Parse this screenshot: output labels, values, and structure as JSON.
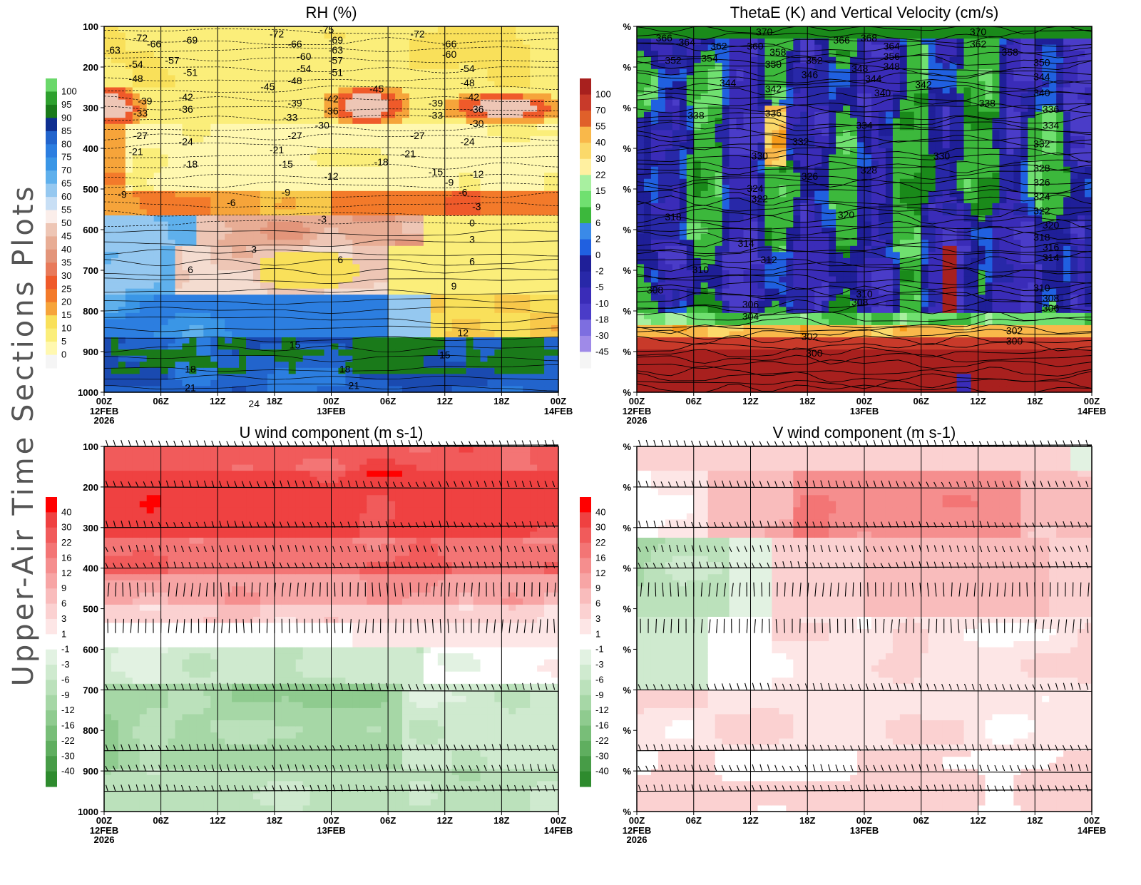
{
  "page": {
    "side_title": "Upper-Air Time Sections Plots"
  },
  "colors": {
    "rh": [
      "#f5f5f5",
      "#fff8b0",
      "#fbee7a",
      "#f9e05a",
      "#f8c84a",
      "#f6a43a",
      "#f37a2a",
      "#ef5a2a",
      "#e87a5a",
      "#e3957a",
      "#e8ad95",
      "#eec6b5",
      "#f4dcd0",
      "#fbeeea",
      "#c8dff5",
      "#95c8f0",
      "#5fb0ec",
      "#3a96e6",
      "#2c7ee0",
      "#2264cc",
      "#1a4ab0",
      "#0f2f90",
      "#1a7a1a",
      "#2ea02e",
      "#6ad86a"
    ],
    "w": [
      "#f5f5f5",
      "#9f8ae8",
      "#7d6ee0",
      "#5f50d4",
      "#4a3cc8",
      "#3a2cb8",
      "#2828a8",
      "#1f1f98",
      "#2060e0",
      "#3a8ae8",
      "#1a8a1a",
      "#3cb83c",
      "#70e070",
      "#a8f0a0",
      "#fff0a0",
      "#fbd96a",
      "#f9b84a",
      "#f59a1a",
      "#e0602a",
      "#c83a2a",
      "#a8201e"
    ],
    "wind": [
      "#2e8b2e",
      "#479c47",
      "#5fae5f",
      "#78be78",
      "#8fcb8f",
      "#a6d7a6",
      "#bbe1bb",
      "#cfeacf",
      "#e2f2e2",
      "#ffffff",
      "#fde6e6",
      "#fbd1d1",
      "#f9bcbc",
      "#f7a5a5",
      "#f58e8e",
      "#f37575",
      "#f15b5b",
      "#ef4141",
      "#ff0000"
    ]
  },
  "chart_data": [
    {
      "id": "rh",
      "type": "heatmap",
      "title": "RH (%)",
      "y_ticks": [
        "100",
        "200",
        "300",
        "400",
        "500",
        "600",
        "700",
        "800",
        "900",
        "1000"
      ],
      "x_ticks": [
        "00Z",
        "06Z",
        "12Z",
        "18Z",
        "00Z",
        "06Z",
        "12Z",
        "18Z",
        "00Z"
      ],
      "date_labels": [
        {
          "tick": 0,
          "lines": [
            "12FEB",
            "2026"
          ]
        },
        {
          "tick": 4,
          "lines": [
            "13FEB"
          ]
        },
        {
          "tick": 8,
          "lines": [
            "14FEB"
          ]
        }
      ],
      "colorbar": [
        "100",
        "95",
        "90",
        "85",
        "80",
        "75",
        "70",
        "65",
        "60",
        "55",
        "50",
        "45",
        "40",
        "35",
        "30",
        "25",
        "20",
        "15",
        "10",
        "5",
        "0"
      ],
      "contour_labels": [
        {
          "t": 0.08,
          "p": 130,
          "v": "-72"
        },
        {
          "t": 0.02,
          "p": 160,
          "v": "-63"
        },
        {
          "t": 0.11,
          "p": 145,
          "v": "-66"
        },
        {
          "t": 0.19,
          "p": 135,
          "v": "-69"
        },
        {
          "t": 0.07,
          "p": 195,
          "v": "-54"
        },
        {
          "t": 0.07,
          "p": 230,
          "v": "-48"
        },
        {
          "t": 0.15,
          "p": 185,
          "v": "-57"
        },
        {
          "t": 0.19,
          "p": 215,
          "v": "-51"
        },
        {
          "t": 0.09,
          "p": 285,
          "v": "-39"
        },
        {
          "t": 0.08,
          "p": 315,
          "v": "-33"
        },
        {
          "t": 0.08,
          "p": 370,
          "v": "-27"
        },
        {
          "t": 0.07,
          "p": 410,
          "v": "-21"
        },
        {
          "t": 0.18,
          "p": 275,
          "v": "-42"
        },
        {
          "t": 0.18,
          "p": 305,
          "v": "-36"
        },
        {
          "t": 0.18,
          "p": 385,
          "v": "-24"
        },
        {
          "t": 0.19,
          "p": 440,
          "v": "-18"
        },
        {
          "t": 0.04,
          "p": 515,
          "v": "-9"
        },
        {
          "t": 0.28,
          "p": 535,
          "v": "-6"
        },
        {
          "t": 0.38,
          "p": 120,
          "v": "-72"
        },
        {
          "t": 0.42,
          "p": 145,
          "v": "-66"
        },
        {
          "t": 0.44,
          "p": 175,
          "v": "-60"
        },
        {
          "t": 0.44,
          "p": 205,
          "v": "-54"
        },
        {
          "t": 0.42,
          "p": 235,
          "v": "-48"
        },
        {
          "t": 0.36,
          "p": 250,
          "v": "-45"
        },
        {
          "t": 0.42,
          "p": 290,
          "v": "-39"
        },
        {
          "t": 0.41,
          "p": 325,
          "v": "-33"
        },
        {
          "t": 0.42,
          "p": 370,
          "v": "-27"
        },
        {
          "t": 0.38,
          "p": 405,
          "v": "-21"
        },
        {
          "t": 0.4,
          "p": 440,
          "v": "-15"
        },
        {
          "t": 0.4,
          "p": 510,
          "v": "-9"
        },
        {
          "t": 0.49,
          "p": 110,
          "v": "-75"
        },
        {
          "t": 0.51,
          "p": 135,
          "v": "-69"
        },
        {
          "t": 0.51,
          "p": 160,
          "v": "-63"
        },
        {
          "t": 0.51,
          "p": 185,
          "v": "-57"
        },
        {
          "t": 0.51,
          "p": 215,
          "v": "-51"
        },
        {
          "t": 0.5,
          "p": 280,
          "v": "-42"
        },
        {
          "t": 0.5,
          "p": 310,
          "v": "-36"
        },
        {
          "t": 0.48,
          "p": 345,
          "v": "-30"
        },
        {
          "t": 0.5,
          "p": 470,
          "v": "-12"
        },
        {
          "t": 0.48,
          "p": 575,
          "v": "-3"
        },
        {
          "t": 0.6,
          "p": 255,
          "v": "-45"
        },
        {
          "t": 0.61,
          "p": 435,
          "v": "-18"
        },
        {
          "t": 0.67,
          "p": 415,
          "v": "-21"
        },
        {
          "t": 0.69,
          "p": 370,
          "v": "-27"
        },
        {
          "t": 0.73,
          "p": 460,
          "v": "-15"
        },
        {
          "t": 0.69,
          "p": 120,
          "v": "-72"
        },
        {
          "t": 0.76,
          "p": 145,
          "v": "-66"
        },
        {
          "t": 0.76,
          "p": 170,
          "v": "-60"
        },
        {
          "t": 0.8,
          "p": 205,
          "v": "-54"
        },
        {
          "t": 0.8,
          "p": 240,
          "v": "-48"
        },
        {
          "t": 0.81,
          "p": 275,
          "v": "-42"
        },
        {
          "t": 0.82,
          "p": 305,
          "v": "-36"
        },
        {
          "t": 0.82,
          "p": 340,
          "v": "-30"
        },
        {
          "t": 0.8,
          "p": 385,
          "v": "-24"
        },
        {
          "t": 0.82,
          "p": 465,
          "v": "-12"
        },
        {
          "t": 0.73,
          "p": 290,
          "v": "-39"
        },
        {
          "t": 0.73,
          "p": 320,
          "v": "-33"
        },
        {
          "t": 0.76,
          "p": 485,
          "v": "-9"
        },
        {
          "t": 0.79,
          "p": 510,
          "v": "-6"
        },
        {
          "t": 0.82,
          "p": 545,
          "v": "-3"
        },
        {
          "t": 0.81,
          "p": 585,
          "v": "0"
        },
        {
          "t": 0.81,
          "p": 625,
          "v": "3"
        },
        {
          "t": 0.81,
          "p": 680,
          "v": "6"
        },
        {
          "t": 0.77,
          "p": 740,
          "v": "9"
        },
        {
          "t": 0.79,
          "p": 855,
          "v": "12"
        },
        {
          "t": 0.75,
          "p": 910,
          "v": "15"
        },
        {
          "t": 0.33,
          "p": 650,
          "v": "3"
        },
        {
          "t": 0.19,
          "p": 700,
          "v": "6"
        },
        {
          "t": 0.52,
          "p": 675,
          "v": "6"
        },
        {
          "t": 0.42,
          "p": 885,
          "v": "15"
        },
        {
          "t": 0.19,
          "p": 945,
          "v": "18"
        },
        {
          "t": 0.19,
          "p": 990,
          "v": "21"
        },
        {
          "t": 0.53,
          "p": 945,
          "v": "18"
        },
        {
          "t": 0.55,
          "p": 985,
          "v": "21"
        },
        {
          "t": 0.33,
          "p": 1030,
          "v": "24"
        }
      ]
    },
    {
      "id": "thetae",
      "type": "heatmap",
      "title": "ThetaE (K) and Vertical Velocity (cm/s)",
      "y_ticks": [
        "%",
        "%",
        "%",
        "%",
        "%",
        "%",
        "%",
        "%",
        "%",
        "%"
      ],
      "x_ticks": [
        "00Z",
        "06Z",
        "12Z",
        "18Z",
        "00Z",
        "06Z",
        "12Z",
        "18Z",
        "00Z"
      ],
      "date_labels": [
        {
          "tick": 0,
          "lines": [
            "12FEB",
            "2026"
          ]
        },
        {
          "tick": 4,
          "lines": [
            "13FEB"
          ]
        },
        {
          "tick": 8,
          "lines": [
            "14FEB"
          ]
        }
      ],
      "colorbar": [
        "100",
        "70",
        "55",
        "40",
        "30",
        "22",
        "15",
        "9",
        "6",
        "2",
        "0",
        "-2",
        "-5",
        "-10",
        "-18",
        "-30",
        "-45"
      ],
      "contour_labels": [
        {
          "t": 0.06,
          "p": 130,
          "v": "366"
        },
        {
          "t": 0.11,
          "p": 140,
          "v": "364"
        },
        {
          "t": 0.18,
          "p": 150,
          "v": "362"
        },
        {
          "t": 0.08,
          "p": 185,
          "v": "352"
        },
        {
          "t": 0.16,
          "p": 180,
          "v": "354"
        },
        {
          "t": 0.2,
          "p": 240,
          "v": "344"
        },
        {
          "t": 0.13,
          "p": 320,
          "v": "338"
        },
        {
          "t": 0.28,
          "p": 115,
          "v": "370"
        },
        {
          "t": 0.26,
          "p": 150,
          "v": "360"
        },
        {
          "t": 0.31,
          "p": 165,
          "v": "358"
        },
        {
          "t": 0.3,
          "p": 195,
          "v": "350"
        },
        {
          "t": 0.38,
          "p": 220,
          "v": "346"
        },
        {
          "t": 0.3,
          "p": 255,
          "v": "342"
        },
        {
          "t": 0.3,
          "p": 315,
          "v": "336"
        },
        {
          "t": 0.36,
          "p": 385,
          "v": "332"
        },
        {
          "t": 0.27,
          "p": 420,
          "v": "330"
        },
        {
          "t": 0.38,
          "p": 470,
          "v": "326"
        },
        {
          "t": 0.26,
          "p": 500,
          "v": "324"
        },
        {
          "t": 0.27,
          "p": 525,
          "v": "322"
        },
        {
          "t": 0.45,
          "p": 135,
          "v": "366"
        },
        {
          "t": 0.51,
          "p": 130,
          "v": "368"
        },
        {
          "t": 0.39,
          "p": 185,
          "v": "352"
        },
        {
          "t": 0.49,
          "p": 205,
          "v": "348"
        },
        {
          "t": 0.56,
          "p": 150,
          "v": "364"
        },
        {
          "t": 0.56,
          "p": 175,
          "v": "356"
        },
        {
          "t": 0.56,
          "p": 200,
          "v": "348"
        },
        {
          "t": 0.52,
          "p": 230,
          "v": "344"
        },
        {
          "t": 0.54,
          "p": 265,
          "v": "340"
        },
        {
          "t": 0.5,
          "p": 345,
          "v": "334"
        },
        {
          "t": 0.51,
          "p": 455,
          "v": "328"
        },
        {
          "t": 0.46,
          "p": 565,
          "v": "320"
        },
        {
          "t": 0.08,
          "p": 570,
          "v": "318"
        },
        {
          "t": 0.24,
          "p": 635,
          "v": "314"
        },
        {
          "t": 0.29,
          "p": 675,
          "v": "312"
        },
        {
          "t": 0.14,
          "p": 700,
          "v": "310"
        },
        {
          "t": 0.04,
          "p": 750,
          "v": "308"
        },
        {
          "t": 0.25,
          "p": 785,
          "v": "306"
        },
        {
          "t": 0.25,
          "p": 815,
          "v": "304"
        },
        {
          "t": 0.5,
          "p": 760,
          "v": "310"
        },
        {
          "t": 0.49,
          "p": 780,
          "v": "308"
        },
        {
          "t": 0.75,
          "p": 115,
          "v": "370"
        },
        {
          "t": 0.75,
          "p": 145,
          "v": "362"
        },
        {
          "t": 0.82,
          "p": 165,
          "v": "358"
        },
        {
          "t": 0.89,
          "p": 190,
          "v": "350"
        },
        {
          "t": 0.89,
          "p": 225,
          "v": "344"
        },
        {
          "t": 0.63,
          "p": 245,
          "v": "342"
        },
        {
          "t": 0.89,
          "p": 265,
          "v": "340"
        },
        {
          "t": 0.77,
          "p": 290,
          "v": "338"
        },
        {
          "t": 0.91,
          "p": 305,
          "v": "336"
        },
        {
          "t": 0.91,
          "p": 345,
          "v": "334"
        },
        {
          "t": 0.89,
          "p": 390,
          "v": "332"
        },
        {
          "t": 0.67,
          "p": 420,
          "v": "330"
        },
        {
          "t": 0.89,
          "p": 450,
          "v": "328"
        },
        {
          "t": 0.89,
          "p": 485,
          "v": "326"
        },
        {
          "t": 0.89,
          "p": 520,
          "v": "324"
        },
        {
          "t": 0.89,
          "p": 555,
          "v": "322"
        },
        {
          "t": 0.91,
          "p": 590,
          "v": "320"
        },
        {
          "t": 0.89,
          "p": 620,
          "v": "318"
        },
        {
          "t": 0.91,
          "p": 645,
          "v": "316"
        },
        {
          "t": 0.91,
          "p": 670,
          "v": "314"
        },
        {
          "t": 0.89,
          "p": 745,
          "v": "310"
        },
        {
          "t": 0.91,
          "p": 770,
          "v": "308"
        },
        {
          "t": 0.91,
          "p": 795,
          "v": "306"
        },
        {
          "t": 0.38,
          "p": 865,
          "v": "302"
        },
        {
          "t": 0.39,
          "p": 905,
          "v": "300"
        },
        {
          "t": 0.83,
          "p": 850,
          "v": "302"
        },
        {
          "t": 0.83,
          "p": 875,
          "v": "300"
        }
      ]
    },
    {
      "id": "u",
      "type": "heatmap",
      "title": "U wind component (m s-1)",
      "y_ticks": [
        "100",
        "200",
        "300",
        "400",
        "500",
        "600",
        "700",
        "800",
        "900",
        "1000"
      ],
      "x_ticks": [
        "00Z",
        "06Z",
        "12Z",
        "18Z",
        "00Z",
        "06Z",
        "12Z",
        "18Z",
        "00Z"
      ],
      "date_labels": [
        {
          "tick": 0,
          "lines": [
            "12FEB",
            "2026"
          ]
        },
        {
          "tick": 4,
          "lines": [
            "13FEB"
          ]
        },
        {
          "tick": 8,
          "lines": [
            "14FEB"
          ]
        }
      ],
      "colorbar": [
        "40",
        "30",
        "22",
        "16",
        "12",
        "9",
        "6",
        "3",
        "1",
        "-1",
        "-3",
        "-6",
        "-9",
        "-12",
        "-16",
        "-22",
        "-30",
        "-40"
      ],
      "barb_levels": [
        100,
        200,
        300,
        360,
        400,
        470,
        560,
        700,
        850,
        900,
        950
      ]
    },
    {
      "id": "v",
      "type": "heatmap",
      "title": "V wind component (m s-1)",
      "y_ticks": [
        "%",
        "%",
        "%",
        "%",
        "%",
        "%",
        "%",
        "%",
        "%",
        "%"
      ],
      "x_ticks": [
        "00Z",
        "06Z",
        "12Z",
        "18Z",
        "00Z",
        "06Z",
        "12Z",
        "18Z",
        "00Z"
      ],
      "date_labels": [
        {
          "tick": 0,
          "lines": [
            "12FEB",
            "2026"
          ]
        },
        {
          "tick": 4,
          "lines": [
            "13FEB"
          ]
        },
        {
          "tick": 8,
          "lines": [
            "14FEB"
          ]
        }
      ],
      "colorbar": [
        "40",
        "30",
        "22",
        "16",
        "12",
        "9",
        "6",
        "3",
        "1",
        "-1",
        "-3",
        "-6",
        "-9",
        "-12",
        "-16",
        "-22",
        "-30",
        "-40"
      ],
      "barb_levels": [
        100,
        200,
        300,
        360,
        400,
        470,
        560,
        700,
        850,
        900,
        950
      ]
    }
  ]
}
